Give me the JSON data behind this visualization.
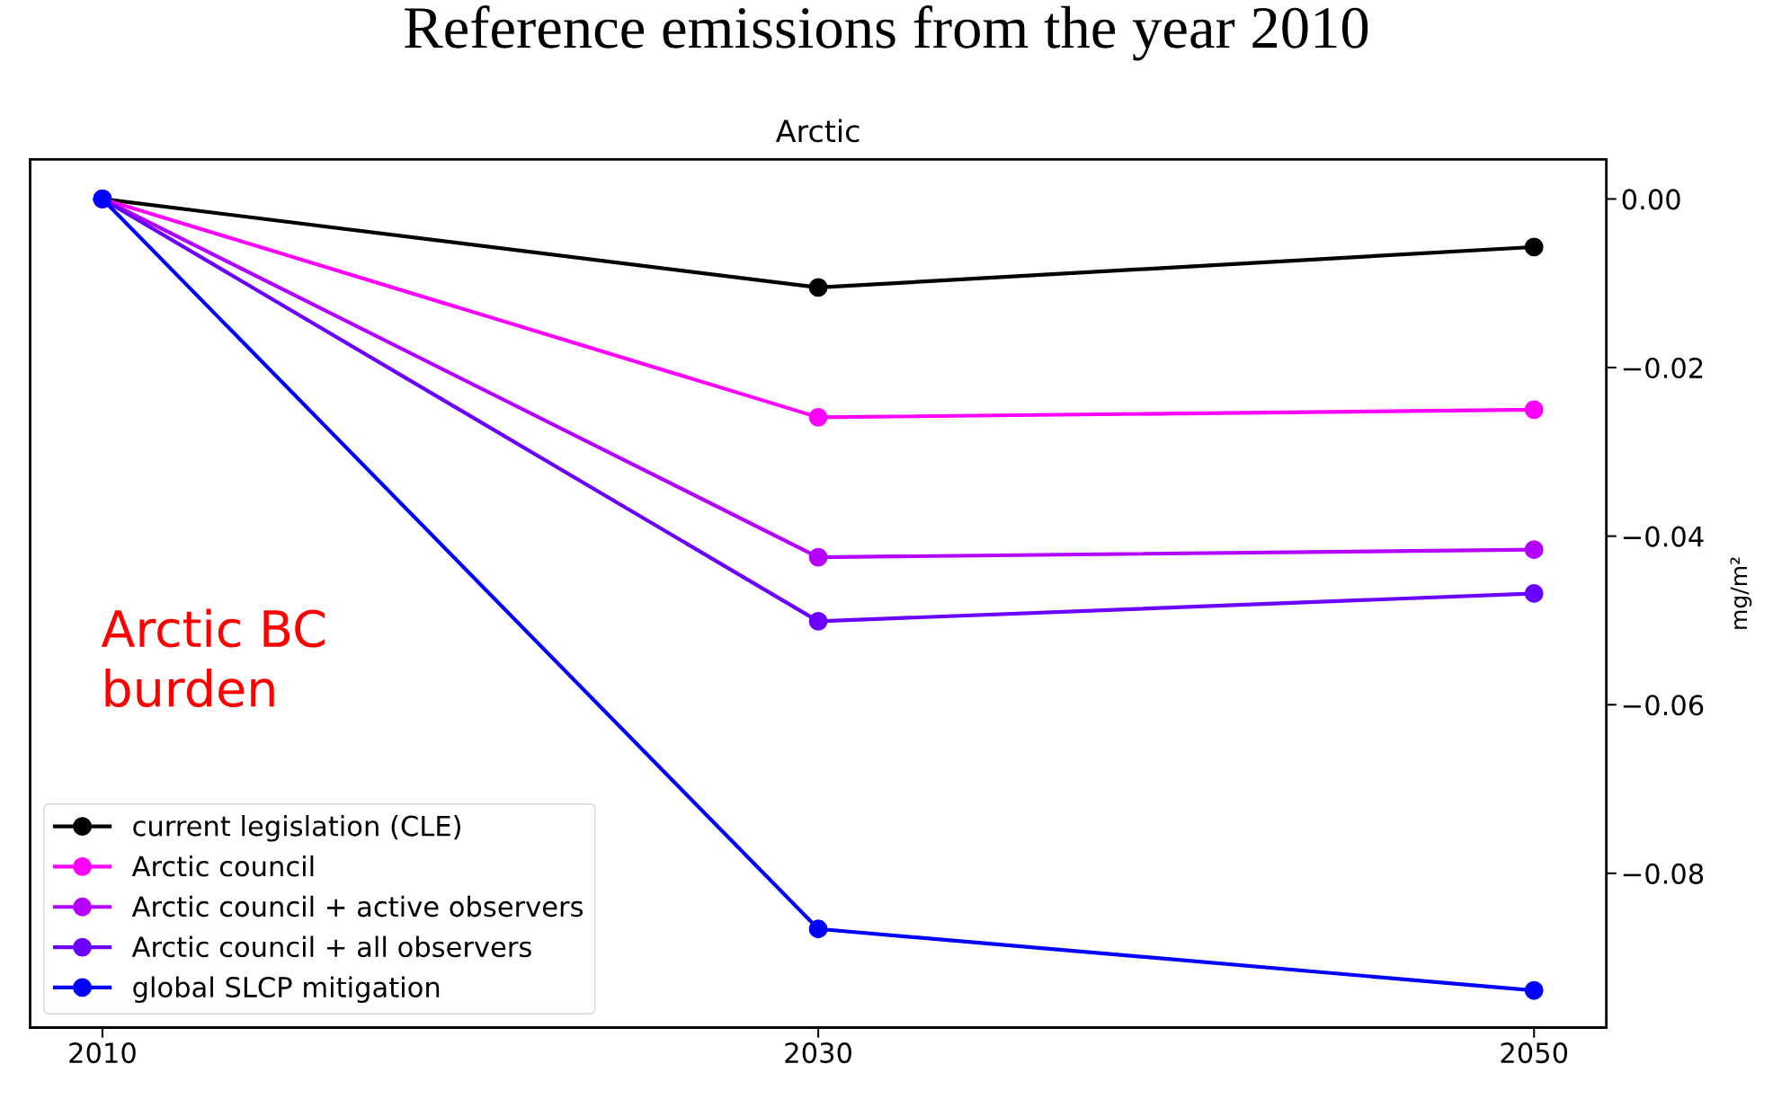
{
  "chart_data": {
    "type": "line",
    "title": "Reference emissions from the year 2010",
    "subtitle": "Arctic",
    "ylabel": "mg/m²",
    "categories": [
      "2010",
      "2030",
      "2050"
    ],
    "series": [
      {
        "name": "current legislation (CLE)",
        "color": "#000000",
        "values": [
          0,
          -0.0105,
          -0.0057
        ]
      },
      {
        "name": "Arctic council",
        "color": "#ff00ff",
        "values": [
          0,
          -0.0259,
          -0.025
        ]
      },
      {
        "name": "Arctic council + active observers",
        "color": "#b400ff",
        "values": [
          0,
          -0.0425,
          -0.0416
        ]
      },
      {
        "name": "Arctic council + all observers",
        "color": "#6a00ff",
        "values": [
          0,
          -0.0501,
          -0.0468
        ]
      },
      {
        "name": "global SLCP mitigation",
        "color": "#0000ff",
        "values": [
          0,
          -0.0866,
          -0.0939
        ]
      }
    ],
    "annotations": [
      "Arctic BC\nburden"
    ],
    "ylim": [
      -0.0983,
      0.0047
    ],
    "yticks": [
      {
        "value": 0,
        "label": "0.00"
      },
      {
        "value": -0.02,
        "label": "−0.02"
      },
      {
        "value": -0.04,
        "label": "−0.04"
      },
      {
        "value": -0.06,
        "label": "−0.06"
      },
      {
        "value": -0.08,
        "label": "−0.08"
      }
    ],
    "marker": "circle",
    "line_style": "solid",
    "legend": "bottom left",
    "grid": false
  }
}
